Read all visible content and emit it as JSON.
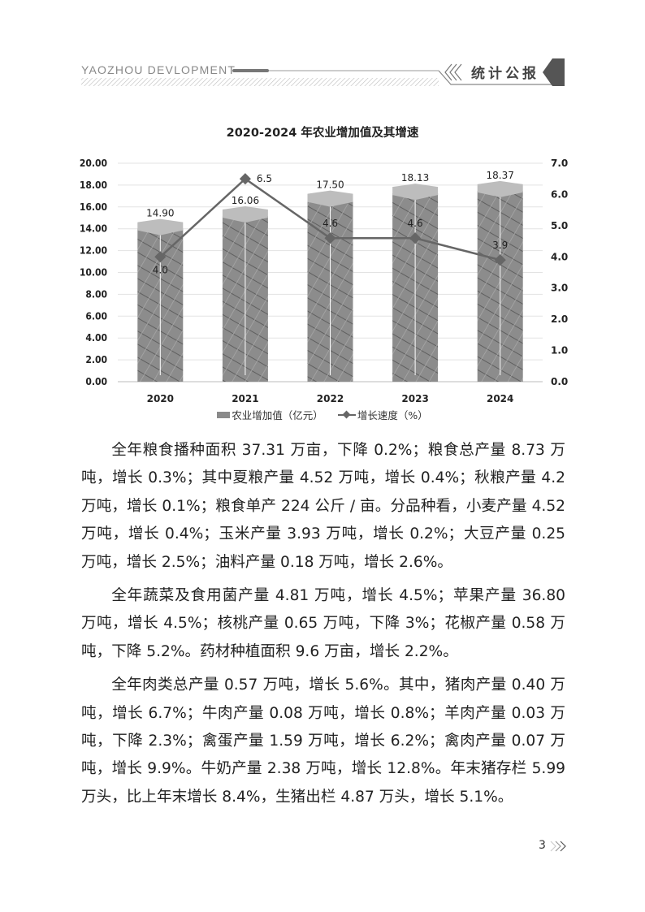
{
  "header": {
    "brand": "YAOZHOU DEVLOPMENT",
    "section_title": "统计公报"
  },
  "chart_data": {
    "type": "bar+line",
    "title": "2020-2024 年农业增加值及其增速",
    "categories": [
      "2020",
      "2021",
      "2022",
      "2023",
      "2024"
    ],
    "series": [
      {
        "name": "农业增加值（亿元）",
        "type": "bar",
        "axis": "left",
        "values": [
          14.9,
          16.06,
          17.5,
          18.13,
          18.37
        ],
        "labels": [
          "14.90",
          "16.06",
          "17.50",
          "18.13",
          "18.37"
        ]
      },
      {
        "name": "增长速度（%）",
        "type": "line",
        "axis": "right",
        "values": [
          4.0,
          6.5,
          4.6,
          4.6,
          3.9
        ],
        "labels": [
          "4.0",
          "6.5",
          "4.6",
          "4.6",
          "3.9"
        ]
      }
    ],
    "y_left": {
      "range": [
        0,
        20
      ],
      "ticks": [
        "0.00",
        "2.00",
        "4.00",
        "6.00",
        "8.00",
        "10.00",
        "12.00",
        "14.00",
        "16.00",
        "18.00",
        "20.00"
      ]
    },
    "y_right": {
      "range": [
        0,
        7
      ],
      "ticks": [
        "0.0",
        "1.0",
        "2.0",
        "3.0",
        "4.0",
        "5.0",
        "6.0",
        "7.0"
      ]
    },
    "grid": true,
    "legend_position": "bottom",
    "colors": {
      "bar": "#8a8a8a",
      "line": "#666666"
    }
  },
  "body": {
    "paragraphs": [
      "全年粮食播种面积 37.31 万亩，下降 0.2%；粮食总产量 8.73 万吨，增长 0.3%；其中夏粮产量 4.52 万吨，增长 0.4%；秋粮产量 4.2 万吨，增长 0.1%；粮食单产 224 公斤 / 亩。分品种看，小麦产量 4.52 万吨，增长 0.4%；玉米产量 3.93 万吨，增长 0.2%；大豆产量 0.25 万吨，增长 2.5%；油料产量 0.18 万吨，增长 2.6%。",
      "全年蔬菜及食用菌产量 4.81 万吨，增长 4.5%；苹果产量 36.80 万吨，增长 4.5%；核桃产量 0.65 万吨，下降 3%；花椒产量 0.58 万吨，下降 5.2%。药材种植面积 9.6 万亩，增长 2.2%。",
      "全年肉类总产量 0.57 万吨，增长 5.6%。其中，猪肉产量 0.40 万吨，增长 6.7%；牛肉产量 0.08 万吨，增长 0.8%；羊肉产量 0.03 万吨，下降 2.3%；禽蛋产量 1.59 万吨，增长 6.2%；禽肉产量 0.07 万吨，增长 9.9%。牛奶产量 2.38 万吨，增长 12.8%。年末猪存栏 5.99 万头，比上年末增长 8.4%，生猪出栏 4.87 万头，增长 5.1%。"
    ]
  },
  "footer": {
    "page_number": "3"
  }
}
